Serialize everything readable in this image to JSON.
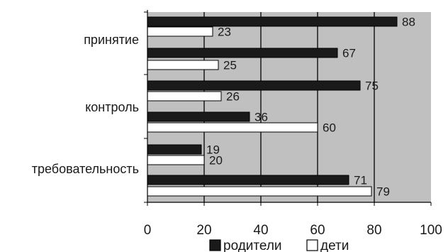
{
  "chart_data": {
    "type": "bar",
    "orientation": "horizontal",
    "title": "",
    "xlabel": "",
    "ylabel": "",
    "xlim": [
      0,
      100
    ],
    "x_ticks": [
      0,
      20,
      40,
      60,
      80,
      100
    ],
    "grid": true,
    "plot_background": "#c0c0c0",
    "legend_position": "bottom",
    "groups": [
      "принятие",
      "контроль",
      "требовательность"
    ],
    "bars": [
      {
        "group": 0,
        "series": 0,
        "value": 88
      },
      {
        "group": 0,
        "series": 1,
        "value": 23
      },
      {
        "group": 0,
        "series": 0,
        "value": 67
      },
      {
        "group": 0,
        "series": 1,
        "value": 25
      },
      {
        "group": 1,
        "series": 0,
        "value": 75
      },
      {
        "group": 1,
        "series": 1,
        "value": 26
      },
      {
        "group": 1,
        "series": 0,
        "value": 36
      },
      {
        "group": 1,
        "series": 1,
        "value": 60
      },
      {
        "group": 2,
        "series": 0,
        "value": 19
      },
      {
        "group": 2,
        "series": 1,
        "value": 20
      },
      {
        "group": 2,
        "series": 0,
        "value": 71
      },
      {
        "group": 2,
        "series": 1,
        "value": 79
      }
    ],
    "series": [
      {
        "name": "родители",
        "color": "#1a1a1a"
      },
      {
        "name": "дети",
        "color": "#ffffff"
      }
    ]
  }
}
